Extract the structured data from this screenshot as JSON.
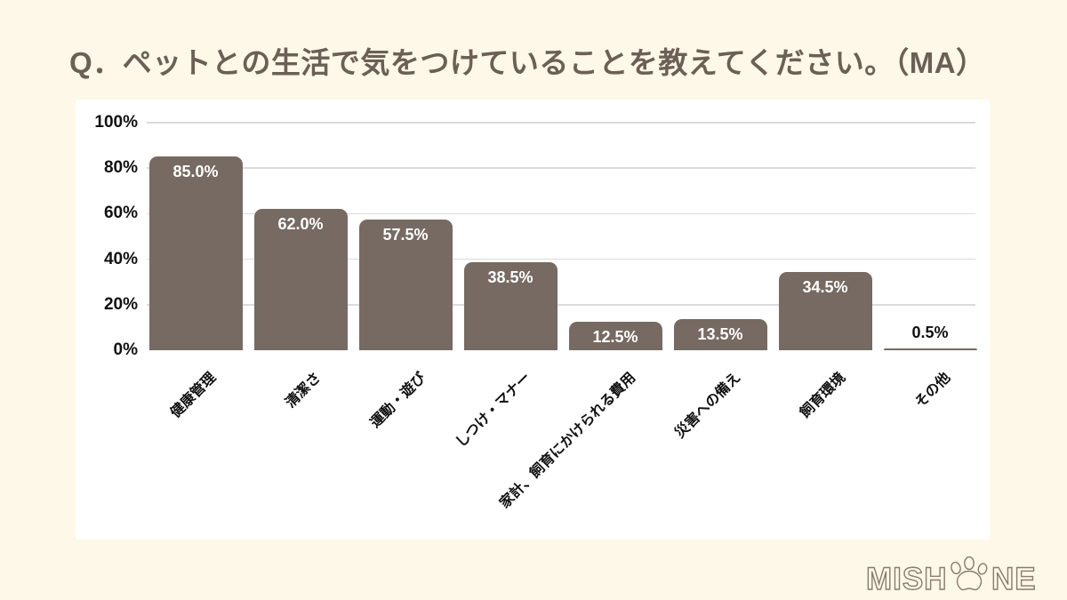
{
  "header": {
    "title": "Q．ペットとの生活で気をつけていることを教えてください。（MA）"
  },
  "chart_data": {
    "type": "bar",
    "title": "Q．ペットとの生活で気をつけていることを教えてください。（MA）",
    "categories": [
      "健康管理",
      "清潔さ",
      "運動・遊び",
      "しつけ・マナー",
      "家計、飼育にかけられる費用",
      "災害への備え",
      "飼育環境",
      "その他"
    ],
    "values": [
      85.0,
      62.0,
      57.5,
      38.5,
      12.5,
      13.5,
      34.5,
      0.5
    ],
    "value_labels": [
      "85.0%",
      "62.0%",
      "57.5%",
      "38.5%",
      "12.5%",
      "13.5%",
      "34.5%",
      "0.5%"
    ],
    "xlabel": "",
    "ylabel": "",
    "ylim": [
      0,
      100
    ],
    "yticks": [
      "0%",
      "20%",
      "40%",
      "60%",
      "80%",
      "100%"
    ],
    "ytick_values": [
      0,
      20,
      40,
      60,
      80,
      100
    ],
    "grid": "horizontal",
    "legend": "none",
    "colors": {
      "bar": "#766A62",
      "value_label_inside": "#FFFFFF",
      "value_label_outside": "#111111",
      "gridline": "#DBDBDB",
      "axis_text": "#111111",
      "panel_background": "#FFFFFF",
      "page_background": "#FDF8E7",
      "title_text": "#6C5F55"
    }
  },
  "logo": {
    "brand": "MISHONE",
    "text_before_icon": "MISH",
    "text_after_icon": "NE",
    "icon": "paw-icon",
    "color": "#8A7B6E"
  }
}
